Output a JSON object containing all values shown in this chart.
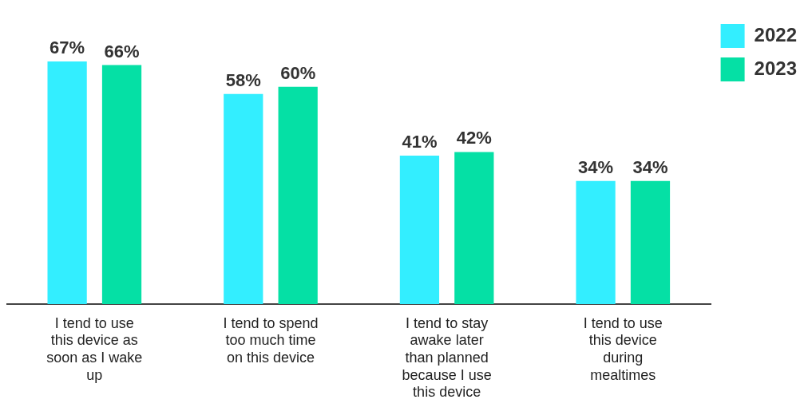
{
  "chart_data": {
    "type": "bar",
    "categories": [
      "I tend to use this device as soon as I wake up",
      "I tend to spend too much time on this device",
      "I tend to stay awake later than planned because I use this device",
      "I tend to use this device during mealtimes"
    ],
    "series": [
      {
        "name": "2022",
        "color": "#33eeff",
        "values": [
          67,
          58,
          41,
          34
        ],
        "value_labels": [
          "67%",
          "58%",
          "41%",
          "34%"
        ]
      },
      {
        "name": "2023",
        "color": "#05e0a5",
        "values": [
          66,
          60,
          42,
          34
        ],
        "value_labels": [
          "66%",
          "60%",
          "42%",
          "34%"
        ]
      }
    ],
    "legend": "top right",
    "grid": false
  }
}
